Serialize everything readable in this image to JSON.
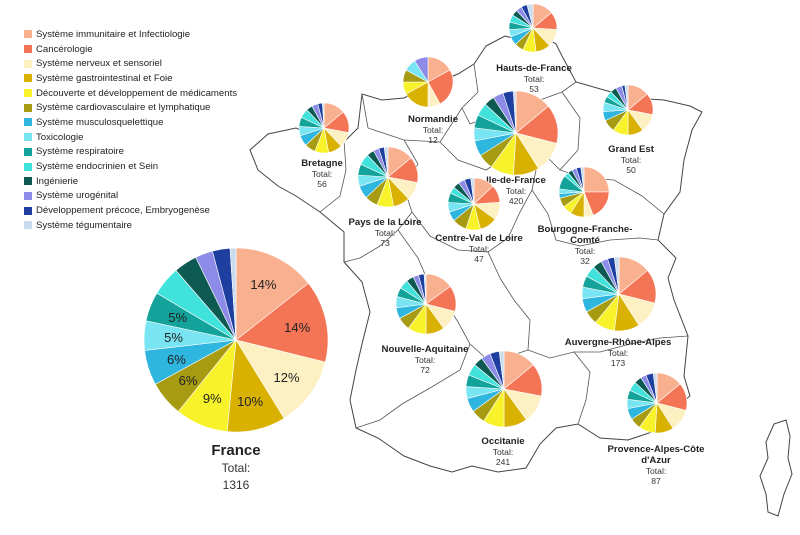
{
  "legend": [
    {
      "label": "Système immunitaire et Infectiologie",
      "color": "#F9B08F"
    },
    {
      "label": "Cancérologie",
      "color": "#F47555"
    },
    {
      "label": "Système nerveux et sensoriel",
      "color": "#FDF0C2"
    },
    {
      "label": "Système gastrointestinal et Foie",
      "color": "#D9B100"
    },
    {
      "label": "Découverte et développement de médicaments",
      "color": "#F7F229"
    },
    {
      "label": "Système cardiovasculaire et lymphatique",
      "color": "#A79B12"
    },
    {
      "label": "Système musculosquelettique",
      "color": "#2FB6DF"
    },
    {
      "label": "Toxicologie",
      "color": "#79E4F2"
    },
    {
      "label": "Système respiratoire",
      "color": "#13A39A"
    },
    {
      "label": "Système endocrinien et Sein",
      "color": "#42E2DC"
    },
    {
      "label": "Ingénierie",
      "color": "#0D5A52"
    },
    {
      "label": "Système urogénital",
      "color": "#8C8CE8"
    },
    {
      "label": "Développement précoce, Embryogenèse",
      "color": "#1F3FA0"
    },
    {
      "label": "Système tégumentaire",
      "color": "#C9DCEE"
    }
  ],
  "total_prefix": "Total:",
  "chart_data": {
    "type": "pie",
    "national": {
      "name": "France",
      "total": 1316,
      "shares": [
        14,
        14,
        12,
        10,
        9,
        6,
        6,
        5,
        5,
        5,
        4,
        3,
        3,
        1
      ],
      "slice_labels": [
        "14%",
        "14%",
        "12%",
        "10%",
        "9%",
        "6%",
        "6%",
        "5%",
        "5%",
        "",
        "",
        "",
        "",
        ""
      ]
    },
    "regions": [
      {
        "name": "Hauts-de-France",
        "total": 53,
        "shares": [
          14,
          12,
          12,
          10,
          9,
          6,
          6,
          5,
          5,
          5,
          4,
          4,
          4,
          4
        ]
      },
      {
        "name": "Normandie",
        "total": 12,
        "shares": [
          17,
          25,
          8,
          17,
          8,
          8,
          0,
          8,
          0,
          0,
          0,
          9,
          0,
          0
        ]
      },
      {
        "name": "Bretagne",
        "total": 56,
        "shares": [
          14,
          14,
          10,
          9,
          9,
          7,
          7,
          6,
          6,
          6,
          4,
          4,
          3,
          1
        ]
      },
      {
        "name": "Grand Est",
        "total": 50,
        "shares": [
          14,
          14,
          12,
          10,
          10,
          8,
          6,
          6,
          4,
          4,
          4,
          4,
          2,
          2
        ]
      },
      {
        "name": "Ile-de-France",
        "total": 420,
        "shares": [
          14,
          15,
          12,
          10,
          9,
          6,
          6,
          5,
          5,
          5,
          4,
          4,
          4,
          1
        ]
      },
      {
        "name": "Pays de la Loire",
        "total": 73,
        "shares": [
          14,
          14,
          10,
          9,
          9,
          7,
          7,
          6,
          6,
          6,
          4,
          3,
          3,
          2
        ]
      },
      {
        "name": "Centre-Val de Loire",
        "total": 47,
        "shares": [
          13,
          11,
          11,
          11,
          9,
          9,
          6,
          6,
          6,
          4,
          4,
          4,
          4,
          2
        ]
      },
      {
        "name": "Bourgogne-Franche-Comté",
        "total": 32,
        "shares": [
          25,
          19,
          6,
          9,
          6,
          6,
          3,
          3,
          9,
          3,
          3,
          3,
          3,
          2
        ]
      },
      {
        "name": "Nouvelle-Aquitaine",
        "total": 72,
        "shares": [
          15,
          14,
          11,
          10,
          10,
          7,
          6,
          6,
          5,
          5,
          4,
          3,
          3,
          1
        ]
      },
      {
        "name": "Auvergne-Rhône-Alpes",
        "total": 173,
        "shares": [
          14,
          15,
          12,
          11,
          9,
          6,
          6,
          5,
          5,
          5,
          4,
          3,
          3,
          2
        ]
      },
      {
        "name": "Occitanie",
        "total": 241,
        "shares": [
          14,
          14,
          12,
          10,
          9,
          6,
          6,
          5,
          5,
          5,
          4,
          4,
          4,
          2
        ]
      },
      {
        "name": "Provence-Alpes-Côte d'Azur",
        "total": 87,
        "shares": [
          14,
          15,
          12,
          10,
          9,
          6,
          6,
          5,
          5,
          5,
          4,
          3,
          4,
          2
        ]
      }
    ]
  }
}
